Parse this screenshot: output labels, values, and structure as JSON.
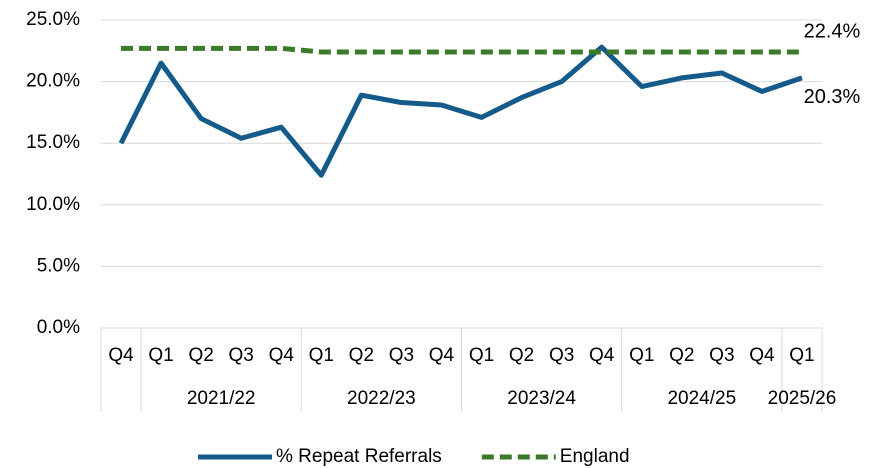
{
  "chart_data": {
    "type": "line",
    "categories": [
      "Q4",
      "Q1",
      "Q2",
      "Q3",
      "Q4",
      "Q1",
      "Q2",
      "Q3",
      "Q4",
      "Q1",
      "Q2",
      "Q3",
      "Q4",
      "Q1",
      "Q2",
      "Q3",
      "Q4",
      "Q1"
    ],
    "category_groups": [
      null,
      "2021/22",
      "2021/22",
      "2021/22",
      "2021/22",
      "2022/23",
      "2022/23",
      "2022/23",
      "2022/23",
      "2023/24",
      "2023/24",
      "2023/24",
      "2023/24",
      "2024/25",
      "2024/25",
      "2024/25",
      "2024/25",
      "2025/26"
    ],
    "series": [
      {
        "name": "% Repeat Referrals",
        "color": "#145a8a",
        "dash": "solid",
        "values": [
          15.0,
          21.5,
          17.0,
          15.4,
          16.3,
          12.4,
          18.9,
          18.3,
          18.1,
          17.1,
          18.7,
          20.0,
          22.8,
          19.6,
          20.3,
          20.7,
          19.2,
          20.3
        ],
        "value_labels": [
          null,
          null,
          null,
          null,
          null,
          null,
          null,
          null,
          null,
          null,
          null,
          null,
          null,
          null,
          null,
          null,
          null,
          "20.3%"
        ]
      },
      {
        "name": "England",
        "color": "#3a7a2a",
        "dash": "dashed",
        "values": [
          22.7,
          22.7,
          22.7,
          22.7,
          22.7,
          22.4,
          22.4,
          22.4,
          22.4,
          22.4,
          22.4,
          22.4,
          22.4,
          22.4,
          22.4,
          22.4,
          22.4,
          22.4
        ],
        "value_labels": [
          null,
          null,
          null,
          null,
          null,
          null,
          null,
          null,
          null,
          null,
          null,
          null,
          null,
          null,
          null,
          null,
          null,
          "22.4%"
        ]
      }
    ],
    "ylim": [
      0,
      25
    ],
    "yticks": [
      {
        "value": 0,
        "label": "0.0%"
      },
      {
        "value": 5,
        "label": "5.0%"
      },
      {
        "value": 10,
        "label": "10.0%"
      },
      {
        "value": 15,
        "label": "15.0%"
      },
      {
        "value": 20,
        "label": "20.0%"
      },
      {
        "value": 25,
        "label": "25.0%"
      }
    ],
    "grid": true,
    "legend": "bottom"
  }
}
